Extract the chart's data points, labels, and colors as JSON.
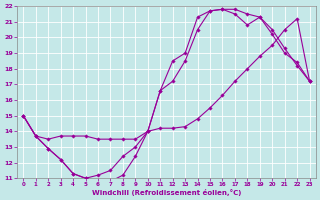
{
  "xlabel": "Windchill (Refroidissement éolien,°C)",
  "bg_color": "#c5e8e8",
  "grid_color": "#b0c8c8",
  "line_color": "#990099",
  "xlim": [
    -0.5,
    23.5
  ],
  "ylim": [
    11,
    22
  ],
  "xticks": [
    0,
    1,
    2,
    3,
    4,
    5,
    6,
    7,
    8,
    9,
    10,
    11,
    12,
    13,
    14,
    15,
    16,
    17,
    18,
    19,
    20,
    21,
    22,
    23
  ],
  "yticks": [
    11,
    12,
    13,
    14,
    15,
    16,
    17,
    18,
    19,
    20,
    21,
    22
  ],
  "curve1_x": [
    0,
    1,
    2,
    3,
    4,
    5,
    6,
    7,
    8,
    9,
    10,
    11,
    12,
    13,
    14,
    15,
    16,
    17,
    18,
    19,
    20,
    21,
    22,
    23
  ],
  "curve1_y": [
    15.0,
    13.7,
    13.5,
    13.7,
    13.7,
    13.7,
    13.5,
    13.5,
    13.5,
    13.5,
    14.0,
    14.2,
    14.2,
    14.3,
    14.8,
    15.5,
    16.3,
    17.2,
    18.0,
    18.8,
    19.5,
    20.5,
    21.2,
    17.2
  ],
  "curve2_x": [
    0,
    1,
    2,
    3,
    4,
    5,
    6,
    7,
    8,
    9,
    10,
    11,
    12,
    13,
    14,
    15,
    16,
    17,
    18,
    19,
    20,
    21,
    22,
    23
  ],
  "curve2_y": [
    15.0,
    13.7,
    12.9,
    12.2,
    11.3,
    11.0,
    10.85,
    10.8,
    11.2,
    12.4,
    14.0,
    16.6,
    18.5,
    19.0,
    21.3,
    21.7,
    21.8,
    21.8,
    21.5,
    21.3,
    20.5,
    19.3,
    18.2,
    17.2
  ],
  "curve3_x": [
    0,
    1,
    2,
    3,
    4,
    5,
    6,
    7,
    8,
    9,
    10,
    11,
    12,
    13,
    14,
    15,
    16,
    17,
    18,
    19,
    20,
    21,
    22,
    23
  ],
  "curve3_y": [
    15.0,
    13.7,
    12.9,
    12.2,
    11.3,
    11.0,
    11.2,
    11.5,
    12.4,
    13.0,
    14.0,
    16.6,
    17.2,
    18.5,
    20.5,
    21.7,
    21.8,
    21.5,
    20.8,
    21.3,
    20.2,
    19.0,
    18.4,
    17.2
  ]
}
